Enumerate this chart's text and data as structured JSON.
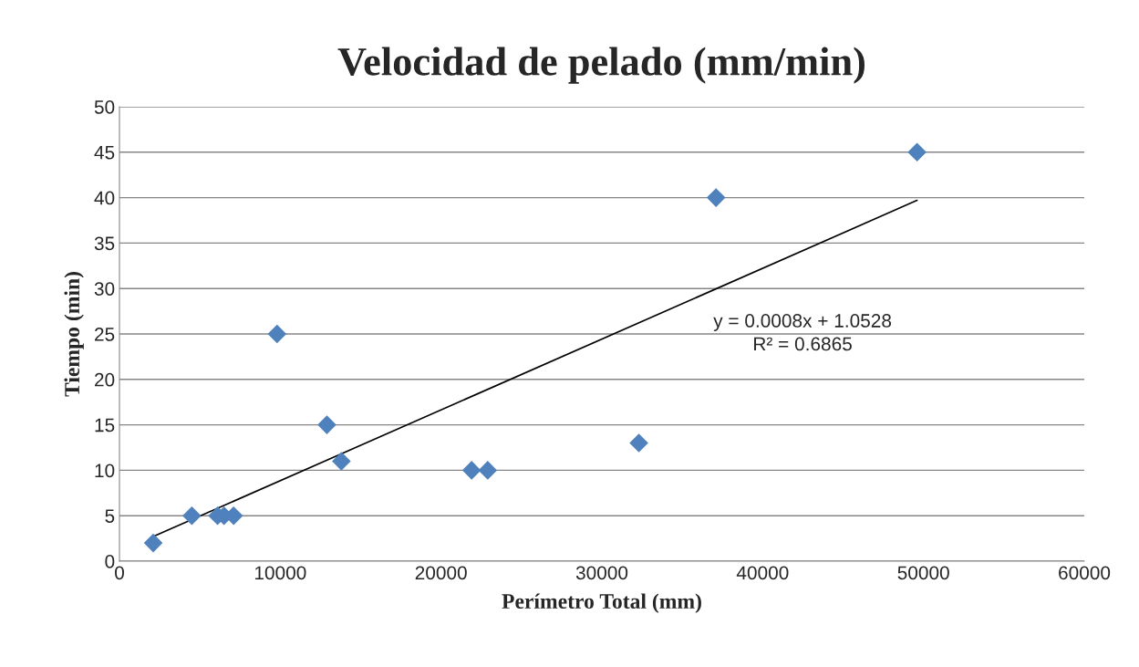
{
  "chart_data": {
    "type": "scatter",
    "title": "Velocidad de pelado (mm/min)",
    "xlabel": "Perímetro Total (mm)",
    "ylabel": "Tiempo (min)",
    "series": [
      {
        "color": "#4f81bd",
        "marker": "diamond",
        "x": [
          2100,
          4500,
          6100,
          6500,
          7100,
          9800,
          12900,
          13800,
          21900,
          22900,
          32300,
          37100,
          49600
        ],
        "values": [
          2,
          5,
          5,
          5,
          5,
          25,
          15,
          11,
          10,
          10,
          13,
          40,
          45
        ]
      },
      {
        "type": "line",
        "color": "#000000",
        "marker": "none",
        "x": [
          2100,
          49600
        ],
        "values": [
          2.7,
          39.7
        ]
      }
    ],
    "annotations": [
      "y = 0.0008x + 1.0528\nR² = 0.6865"
    ],
    "xlim": [
      0,
      60000
    ],
    "xticks": [
      0,
      10000,
      20000,
      30000,
      40000,
      50000,
      60000
    ],
    "ylim": [
      0,
      50
    ],
    "yticks": [
      0,
      5,
      10,
      15,
      20,
      25,
      30,
      35,
      40,
      45,
      50
    ],
    "grid": "y",
    "legend": false
  }
}
